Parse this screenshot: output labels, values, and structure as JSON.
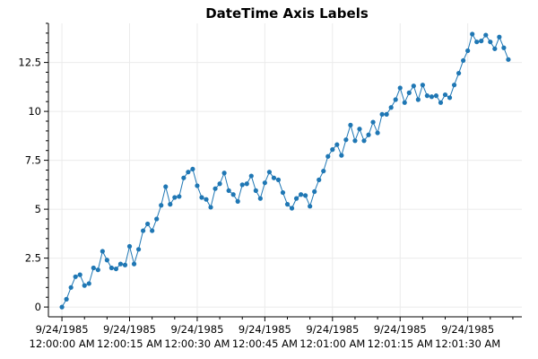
{
  "chart_data": {
    "type": "line",
    "title": "DateTime Axis Labels",
    "xlabel": "",
    "ylabel": "",
    "grid": true,
    "marker_color": "#1f77b4",
    "line_color": "#1f77b4",
    "x_unit": "seconds after 9/24/1985 12:00:00 AM",
    "x": [
      0,
      1,
      2,
      3,
      4,
      5,
      6,
      7,
      8,
      9,
      10,
      11,
      12,
      13,
      14,
      15,
      16,
      17,
      18,
      19,
      20,
      21,
      22,
      23,
      24,
      25,
      26,
      27,
      28,
      29,
      30,
      31,
      32,
      33,
      34,
      35,
      36,
      37,
      38,
      39,
      40,
      41,
      42,
      43,
      44,
      45,
      46,
      47,
      48,
      49,
      50,
      51,
      52,
      53,
      54,
      55,
      56,
      57,
      58,
      59,
      60,
      61,
      62,
      63,
      64,
      65,
      66,
      67,
      68,
      69,
      70,
      71,
      72,
      73,
      74,
      75,
      76,
      77,
      78,
      79,
      80,
      81,
      82,
      83,
      84,
      85,
      86,
      87,
      88,
      89,
      90,
      91,
      92,
      93,
      94,
      95,
      96,
      97,
      98,
      99
    ],
    "xlim": [
      -3,
      102
    ],
    "ylim": [
      -0.5,
      14.5
    ],
    "yticks": [
      0,
      2.5,
      5,
      7.5,
      10,
      12.5
    ],
    "ytick_labels": [
      "0",
      "2.5",
      "5",
      "7.5",
      "10",
      "12.5"
    ],
    "xticks": [
      0,
      15,
      30,
      45,
      60,
      75,
      90
    ],
    "xtick_labels": [
      [
        "9/24/1985",
        "12:00:00 AM"
      ],
      [
        "9/24/1985",
        "12:00:15 AM"
      ],
      [
        "9/24/1985",
        "12:00:30 AM"
      ],
      [
        "9/24/1985",
        "12:00:45 AM"
      ],
      [
        "9/24/1985",
        "12:01:00 AM"
      ],
      [
        "9/24/1985",
        "12:01:15 AM"
      ],
      [
        "9/24/1985",
        "12:01:30 AM"
      ]
    ],
    "y": [
      0.0,
      0.4,
      1.0,
      1.55,
      1.65,
      1.1,
      1.2,
      2.0,
      1.9,
      2.85,
      2.4,
      2.0,
      1.95,
      2.2,
      2.15,
      3.1,
      2.2,
      2.95,
      3.9,
      4.25,
      3.9,
      4.5,
      5.2,
      6.15,
      5.25,
      5.6,
      5.65,
      6.6,
      6.9,
      7.05,
      6.2,
      5.6,
      5.5,
      5.1,
      6.05,
      6.3,
      6.85,
      5.95,
      5.75,
      5.4,
      6.25,
      6.3,
      6.7,
      5.95,
      5.55,
      6.35,
      6.9,
      6.6,
      6.5,
      5.85,
      5.25,
      5.05,
      5.55,
      5.75,
      5.7,
      5.15,
      5.9,
      6.5,
      6.95,
      7.7,
      8.05,
      8.3,
      7.75,
      8.55,
      9.3,
      8.5,
      9.1,
      8.5,
      8.8,
      9.45,
      8.9,
      9.85,
      9.85,
      10.2,
      10.6,
      11.2,
      10.45,
      10.95,
      11.3,
      10.6,
      11.35,
      10.8,
      10.75,
      10.8,
      10.45,
      10.85,
      10.7,
      11.35,
      11.95,
      12.6,
      13.1,
      13.95,
      13.55,
      13.6,
      13.9,
      13.55,
      13.2,
      13.8,
      13.25,
      12.65
    ]
  }
}
